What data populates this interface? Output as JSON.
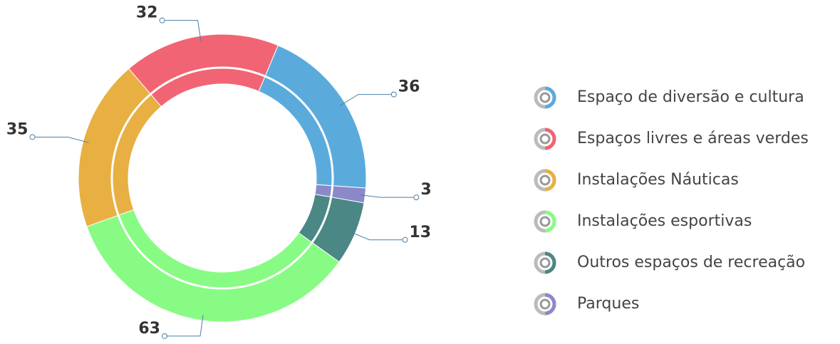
{
  "chart_data": {
    "type": "donut",
    "categories": [
      "Espaço de diversão e cultura",
      "Espaços livres e áreas verdes",
      "Instalações Náuticas",
      "Instalações esportivas",
      "Outros espaços de recreação",
      "Parques"
    ],
    "values": [
      36,
      32,
      35,
      63,
      13,
      3
    ],
    "colors": [
      "#5aabdc",
      "#f16474",
      "#e8b042",
      "#88fb84",
      "#4b8784",
      "#8b89c9"
    ],
    "legend": "right"
  }
}
